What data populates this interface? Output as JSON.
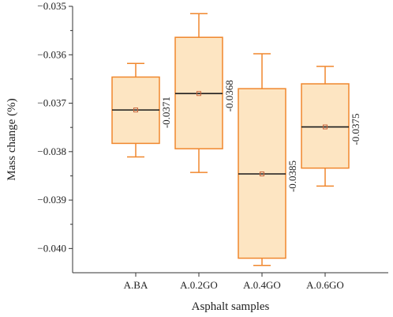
{
  "chart_data": {
    "type": "box",
    "xlabel": "Asphalt samples",
    "ylabel": "Mass change (%)",
    "ylim": [
      -0.0405,
      -0.035
    ],
    "yticks": [
      -0.035,
      -0.036,
      -0.037,
      -0.038,
      -0.039,
      -0.04
    ],
    "ytick_labels": [
      "−0.035",
      "−0.036",
      "−0.037",
      "−0.038",
      "−0.039",
      "−0.040"
    ],
    "categories": [
      "A.BA",
      "A.0.2GO",
      "A.0.4GO",
      "A.0.6GO"
    ],
    "boxes": [
      {
        "category": "A.BA",
        "whisker_low": -0.03811,
        "q1": -0.03783,
        "median": -0.03714,
        "q3": -0.03646,
        "whisker_high": -0.03618,
        "mean": -0.03714,
        "label": "-0.0371"
      },
      {
        "category": "A.0.2GO",
        "whisker_low": -0.03843,
        "q1": -0.03794,
        "median": -0.0368,
        "q3": -0.03564,
        "whisker_high": -0.03515,
        "mean": -0.0368,
        "label": "-0.0368"
      },
      {
        "category": "A.0.4GO",
        "whisker_low": -0.04035,
        "q1": -0.0402,
        "median": -0.03846,
        "q3": -0.0367,
        "whisker_high": -0.03598,
        "mean": -0.03846,
        "label": "-0.0385"
      },
      {
        "category": "A.0.6GO",
        "whisker_low": -0.03871,
        "q1": -0.03834,
        "median": -0.03749,
        "q3": -0.0366,
        "whisker_high": -0.03624,
        "mean": -0.03749,
        "label": "-0.0375"
      }
    ],
    "colors": {
      "box_fill": "#fde5c2",
      "box_edge": "#f0872d",
      "median": "#1a1a1a",
      "mean_marker": "#c8643c",
      "axis": "#333333"
    }
  }
}
